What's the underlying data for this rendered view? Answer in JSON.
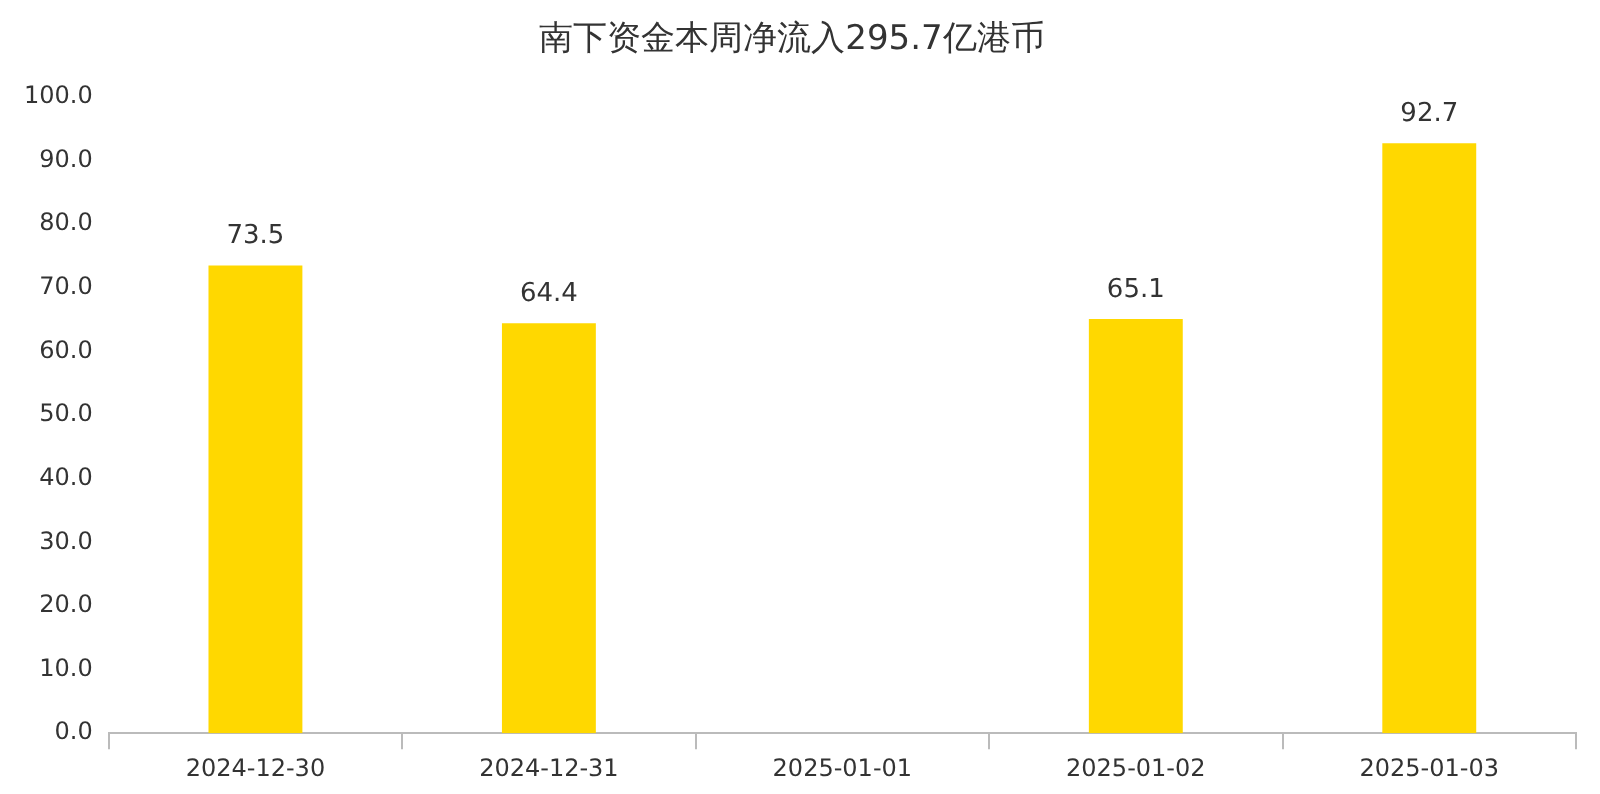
{
  "chart_data": {
    "type": "bar",
    "title": "南下资金本周净流入295.7亿港币",
    "categories": [
      "2024-12-30",
      "2024-12-31",
      "2025-01-01",
      "2025-01-02",
      "2025-01-03"
    ],
    "values": [
      73.5,
      64.4,
      null,
      65.1,
      92.7
    ],
    "color": "#ffd800",
    "ylim": [
      0,
      100
    ],
    "yticks": [
      {
        "value": 0,
        "label": "0.0"
      },
      {
        "value": 10,
        "label": "10.0"
      },
      {
        "value": 20,
        "label": "20.0"
      },
      {
        "value": 30,
        "label": "30.0"
      },
      {
        "value": 40,
        "label": "40.0"
      },
      {
        "value": 50,
        "label": "50.0"
      },
      {
        "value": 60,
        "label": "60.0"
      },
      {
        "value": 70,
        "label": "70.0"
      },
      {
        "value": 80,
        "label": "80.0"
      },
      {
        "value": 90,
        "label": "90.0"
      },
      {
        "value": 100,
        "label": "100.0"
      }
    ],
    "grid": false,
    "legend": false,
    "data_labels": true
  }
}
